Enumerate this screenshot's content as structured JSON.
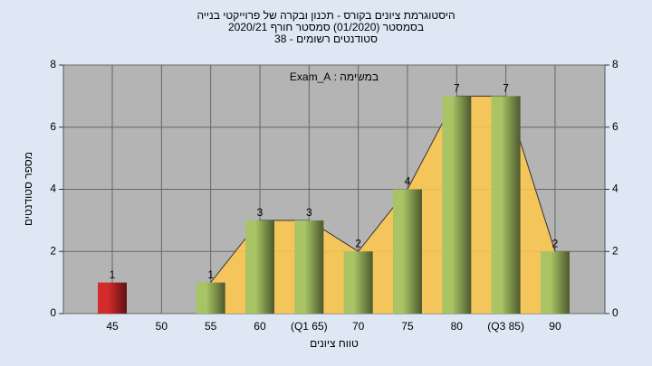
{
  "chart_data": {
    "type": "bar",
    "title": [
      "היסטוגרמת ציונים בקורס - תכנון ובקרה של פרוייקטי בנייה",
      "בסמסטר  (01/2020)  סמסטר חורף  2020/21",
      "סטודנטים רשומים - 38"
    ],
    "annotation": "במשימה : Exam_A",
    "x_label": "טווח ציונים",
    "y_label": "מספר סטודנטים",
    "categories": [
      "45",
      "50",
      "55",
      "60",
      "(Q1 65)",
      "70",
      "75",
      "80",
      "(Q3 85)",
      "90"
    ],
    "values": [
      1,
      null,
      1,
      3,
      3,
      2,
      4,
      7,
      7,
      2
    ],
    "colors": [
      "#d42a2a",
      "#a8c464",
      "#a8c464",
      "#a8c464",
      "#a8c464",
      "#a8c464",
      "#a8c464",
      "#a8c464",
      "#a8c464",
      "#a8c464"
    ],
    "area_color": "#ffc84a",
    "ylim": [
      0,
      8
    ],
    "yticks": [
      0,
      2,
      4,
      6,
      8
    ],
    "grid": true
  }
}
